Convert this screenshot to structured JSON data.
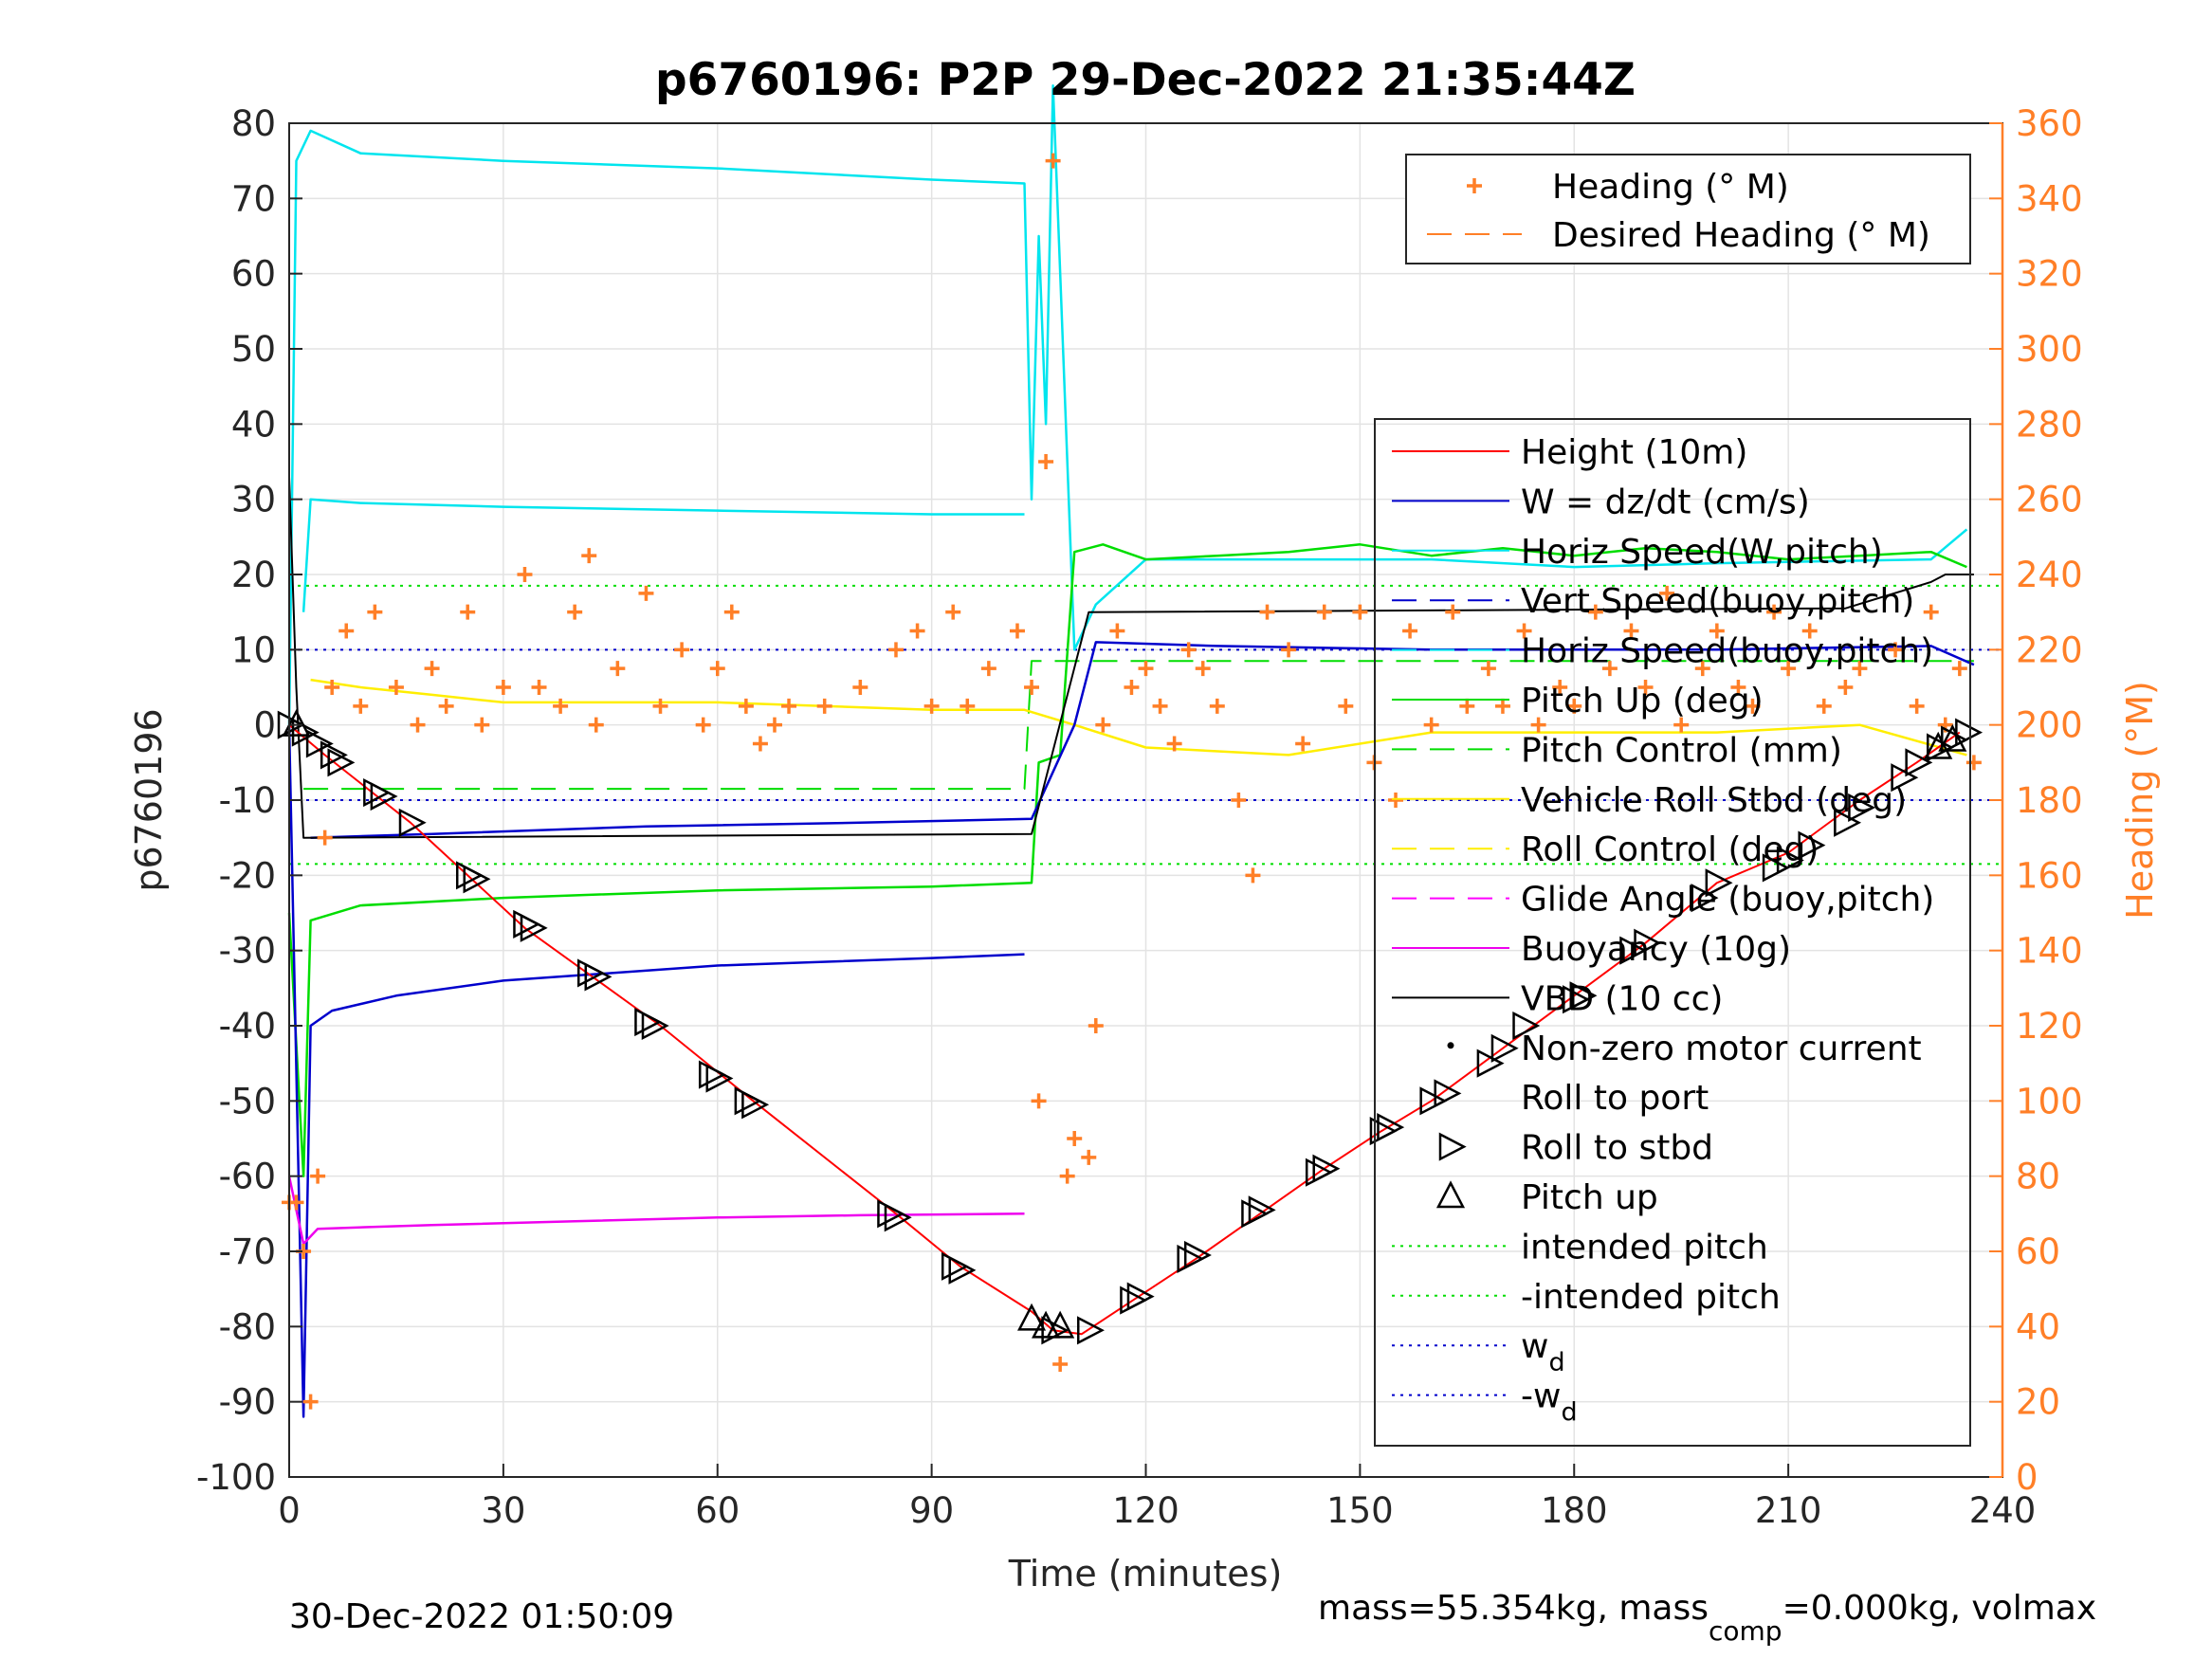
{
  "chart_data": {
    "type": "line",
    "title": "p6760196: P2P 29-Dec-2022 21:35:44Z",
    "xlabel": "Time (minutes)",
    "ylabel_left": "p6760196",
    "ylabel_right": "Heading (°M)",
    "xlim": [
      0,
      240
    ],
    "ylim_left": [
      -100,
      80
    ],
    "ylim_right": [
      0,
      360
    ],
    "x_ticks": [
      "0",
      "30",
      "60",
      "90",
      "120",
      "150",
      "180",
      "210",
      "240"
    ],
    "y_ticks_left": [
      "80",
      "70",
      "60",
      "50",
      "40",
      "30",
      "20",
      "10",
      "0",
      "-10",
      "-20",
      "-30",
      "-40",
      "-50",
      "-60",
      "-70",
      "-80",
      "-90",
      "-100"
    ],
    "y_ticks_right": [
      "360",
      "340",
      "320",
      "300",
      "280",
      "260",
      "240",
      "220",
      "200",
      "180",
      "160",
      "140",
      "120",
      "100",
      "80",
      "60",
      "40",
      "20",
      "0"
    ],
    "grid": true,
    "footer_left": "30-Dec-2022 01:50:09",
    "footer_right_pre": "mass=55.354kg, mass",
    "footer_right_sub": "comp",
    "footer_right_post": "=0.000kg, volmax",
    "colors": {
      "height": "#ff0000",
      "w": "#0000cc",
      "horiz": "#00e5ee",
      "pitch": "#00dd00",
      "roll": "#ffee00",
      "glide": "#ff00ff",
      "buoy": "#ee00ee",
      "vbd": "#000000",
      "heading": "#ff7f27",
      "right_axis": "#ff7f27"
    },
    "legend_top": [
      {
        "label": "Heading (° M)",
        "style": "plus"
      },
      {
        "label": "Desired Heading (° M)",
        "style": "dash"
      }
    ],
    "legend_main": [
      {
        "label": "Height (10m)",
        "color": "#ff0000",
        "style": "solid"
      },
      {
        "label": "W = dz/dt (cm/s)",
        "color": "#0000cc",
        "style": "solid"
      },
      {
        "label": "Horiz Speed(W,pitch)",
        "color": "#00e5ee",
        "style": "solid"
      },
      {
        "label": "Vert Speed(buoy,pitch)",
        "color": "#0000cc",
        "style": "dash"
      },
      {
        "label": "Horiz Speed(buoy,pitch)",
        "color": "#00e5ee",
        "style": "dash"
      },
      {
        "label": "Pitch Up (deg)",
        "color": "#00dd00",
        "style": "solid"
      },
      {
        "label": "Pitch Control (mm)",
        "color": "#00dd00",
        "style": "dash"
      },
      {
        "label": "Vehicle Roll Stbd (deg)",
        "color": "#ffee00",
        "style": "solid"
      },
      {
        "label": "Roll Control (deg)",
        "color": "#ffee00",
        "style": "dash"
      },
      {
        "label": "Glide Angle (buoy,pitch)",
        "color": "#ff00ff",
        "style": "dash"
      },
      {
        "label": "Buoyancy (10g)",
        "color": "#ee00ee",
        "style": "solid"
      },
      {
        "label": "VBD (10 cc)",
        "color": "#000000",
        "style": "solid"
      },
      {
        "label": "Non-zero motor current",
        "color": "#000000",
        "style": "dot"
      },
      {
        "label": "Roll to port",
        "color": "#000000",
        "style": "none"
      },
      {
        "label": "Roll to stbd",
        "color": "#000000",
        "style": "tri-right"
      },
      {
        "label": "Pitch up",
        "color": "#000000",
        "style": "tri-up"
      },
      {
        "label": "intended pitch",
        "color": "#00dd00",
        "style": "dotted"
      },
      {
        "label": "-intended pitch",
        "color": "#00dd00",
        "style": "dotted"
      },
      {
        "label": "w",
        "sub": "d",
        "color": "#0000cc",
        "style": "dotted"
      },
      {
        "label": "-w",
        "sub": "d",
        "color": "#0000cc",
        "style": "dotted"
      }
    ],
    "reference_lines": {
      "intended_pitch": 18.5,
      "w_d": 10
    },
    "series": {
      "height": [
        [
          0,
          0
        ],
        [
          5,
          -4
        ],
        [
          17,
          -13
        ],
        [
          33,
          -27
        ],
        [
          52,
          -40
        ],
        [
          65,
          -50
        ],
        [
          85,
          -65
        ],
        [
          94,
          -72
        ],
        [
          104,
          -78
        ],
        [
          107,
          -80.5
        ],
        [
          111,
          -81
        ],
        [
          119,
          -76
        ],
        [
          127,
          -71
        ],
        [
          136,
          -65
        ],
        [
          145,
          -59
        ],
        [
          153,
          -54
        ],
        [
          160,
          -50
        ],
        [
          170,
          -43
        ],
        [
          180,
          -36
        ],
        [
          190,
          -29
        ],
        [
          200,
          -21
        ],
        [
          210,
          -17
        ],
        [
          220,
          -10
        ],
        [
          228,
          -5
        ],
        [
          234,
          -1
        ]
      ],
      "roll_markers": [
        [
          0,
          0
        ],
        [
          2,
          -1
        ],
        [
          4,
          -2.5
        ],
        [
          6,
          -4
        ],
        [
          7,
          -5
        ],
        [
          12,
          -9
        ],
        [
          13,
          -9.5
        ],
        [
          17,
          -13
        ],
        [
          25,
          -20
        ],
        [
          26,
          -20.5
        ],
        [
          33,
          -26.5
        ],
        [
          34,
          -27
        ],
        [
          42,
          -33
        ],
        [
          43,
          -33.5
        ],
        [
          50,
          -39.5
        ],
        [
          51,
          -40
        ],
        [
          59,
          -46.5
        ],
        [
          60,
          -47
        ],
        [
          64,
          -50
        ],
        [
          65,
          -50.5
        ],
        [
          84,
          -65
        ],
        [
          85,
          -65.5
        ],
        [
          93,
          -72
        ],
        [
          94,
          -72.5
        ],
        [
          107,
          -80.5
        ],
        [
          112,
          -80.5
        ],
        [
          118,
          -76.5
        ],
        [
          119,
          -76
        ],
        [
          126,
          -71
        ],
        [
          127,
          -70.5
        ],
        [
          135,
          -65
        ],
        [
          136,
          -64.5
        ],
        [
          144,
          -59.5
        ],
        [
          145,
          -59
        ],
        [
          153,
          -54
        ],
        [
          154,
          -53.5
        ],
        [
          160,
          -50
        ],
        [
          162,
          -49
        ],
        [
          168,
          -45
        ],
        [
          170,
          -43
        ],
        [
          173,
          -40
        ],
        [
          180,
          -36.5
        ],
        [
          181,
          -36
        ],
        [
          188,
          -30
        ],
        [
          190,
          -29
        ],
        [
          198,
          -23
        ],
        [
          200,
          -21
        ],
        [
          208,
          -19
        ],
        [
          210,
          -18
        ],
        [
          213,
          -16
        ],
        [
          218,
          -13
        ],
        [
          220,
          -11
        ],
        [
          226,
          -7
        ],
        [
          228,
          -5
        ],
        [
          231,
          -3
        ],
        [
          233,
          -2
        ],
        [
          235,
          -1
        ]
      ],
      "pitch_up_markers": [
        [
          1,
          0
        ],
        [
          104,
          -79
        ],
        [
          106,
          -80
        ],
        [
          108,
          -80
        ],
        [
          231,
          -3
        ],
        [
          233,
          -2
        ]
      ],
      "vbd": [
        [
          0,
          33
        ],
        [
          1,
          5
        ],
        [
          2,
          -15
        ],
        [
          104,
          -14.5
        ],
        [
          112,
          15
        ],
        [
          218,
          15.5
        ],
        [
          230,
          19
        ],
        [
          232,
          20
        ],
        [
          236,
          20
        ]
      ],
      "pitch_up": [
        [
          0,
          -25
        ],
        [
          2,
          -60
        ],
        [
          3,
          -26
        ],
        [
          10,
          -24
        ],
        [
          30,
          -23
        ],
        [
          60,
          -22
        ],
        [
          90,
          -21.5
        ],
        [
          104,
          -21
        ],
        [
          105,
          -5
        ],
        [
          108,
          -4
        ],
        [
          110,
          23
        ],
        [
          114,
          24
        ],
        [
          120,
          22
        ],
        [
          130,
          22.5
        ],
        [
          140,
          23
        ],
        [
          150,
          24
        ],
        [
          160,
          22.5
        ],
        [
          170,
          23.5
        ],
        [
          180,
          22.5
        ],
        [
          190,
          23.5
        ],
        [
          200,
          23
        ],
        [
          210,
          22
        ],
        [
          220,
          22.5
        ],
        [
          230,
          23
        ],
        [
          235,
          21
        ]
      ],
      "w": [
        [
          0,
          0
        ],
        [
          2,
          -92
        ],
        [
          3,
          -40
        ],
        [
          6,
          -38
        ],
        [
          15,
          -36
        ],
        [
          30,
          -34
        ],
        [
          60,
          -32
        ],
        [
          90,
          -31
        ],
        [
          103,
          -30.5
        ]
      ],
      "w_pos": [
        [
          3,
          -15
        ],
        [
          20,
          -14.5
        ],
        [
          50,
          -13.5
        ],
        [
          80,
          -13
        ],
        [
          104,
          -12.5
        ],
        [
          110,
          0
        ],
        [
          113,
          11
        ],
        [
          130,
          10.5
        ],
        [
          160,
          10
        ],
        [
          200,
          10
        ],
        [
          230,
          10.5
        ],
        [
          236,
          8
        ]
      ],
      "horiz": [
        [
          0,
          0
        ],
        [
          1,
          75
        ],
        [
          3,
          79
        ],
        [
          10,
          76
        ],
        [
          30,
          75
        ],
        [
          60,
          74
        ],
        [
          90,
          72.5
        ],
        [
          103,
          72
        ],
        [
          104,
          30
        ],
        [
          105,
          65
        ],
        [
          106,
          40
        ],
        [
          107,
          85
        ],
        [
          108,
          60
        ],
        [
          110,
          10
        ],
        [
          113,
          16
        ],
        [
          120,
          22
        ],
        [
          140,
          22
        ],
        [
          160,
          22
        ],
        [
          180,
          21
        ],
        [
          200,
          21.5
        ],
        [
          230,
          22
        ],
        [
          235,
          26
        ]
      ],
      "horiz_low": [
        [
          2,
          15
        ],
        [
          3,
          30
        ],
        [
          10,
          29.5
        ],
        [
          30,
          29
        ],
        [
          60,
          28.5
        ],
        [
          90,
          28
        ],
        [
          103,
          28
        ]
      ],
      "buoyancy": [
        [
          0,
          -60
        ],
        [
          2,
          -69
        ],
        [
          4,
          -67
        ],
        [
          20,
          -66.5
        ],
        [
          40,
          -66
        ],
        [
          60,
          -65.5
        ],
        [
          80,
          -65.2
        ],
        [
          103,
          -65
        ]
      ],
      "heading": [
        [
          0,
          73
        ],
        [
          1,
          73
        ],
        [
          2,
          60
        ],
        [
          3,
          20
        ],
        [
          4,
          80
        ],
        [
          5,
          170
        ],
        [
          6,
          210
        ],
        [
          8,
          225
        ],
        [
          10,
          205
        ],
        [
          12,
          230
        ],
        [
          15,
          210
        ],
        [
          18,
          200
        ],
        [
          20,
          215
        ],
        [
          22,
          205
        ],
        [
          25,
          230
        ],
        [
          27,
          200
        ],
        [
          30,
          210
        ],
        [
          33,
          240
        ],
        [
          35,
          210
        ],
        [
          38,
          205
        ],
        [
          40,
          230
        ],
        [
          42,
          245
        ],
        [
          43,
          200
        ],
        [
          46,
          215
        ],
        [
          50,
          235
        ],
        [
          52,
          205
        ],
        [
          55,
          220
        ],
        [
          58,
          200
        ],
        [
          60,
          215
        ],
        [
          62,
          230
        ],
        [
          64,
          205
        ],
        [
          66,
          195
        ],
        [
          68,
          200
        ],
        [
          70,
          205
        ],
        [
          75,
          205
        ],
        [
          80,
          210
        ],
        [
          85,
          220
        ],
        [
          88,
          225
        ],
        [
          90,
          205
        ],
        [
          93,
          230
        ],
        [
          95,
          205
        ],
        [
          98,
          215
        ],
        [
          102,
          225
        ],
        [
          104,
          210
        ],
        [
          105,
          100
        ],
        [
          106,
          270
        ],
        [
          107,
          350
        ],
        [
          108,
          30
        ],
        [
          109,
          80
        ],
        [
          110,
          90
        ],
        [
          112,
          85
        ],
        [
          113,
          120
        ],
        [
          114,
          200
        ],
        [
          116,
          225
        ],
        [
          118,
          210
        ],
        [
          120,
          215
        ],
        [
          122,
          205
        ],
        [
          124,
          195
        ],
        [
          126,
          220
        ],
        [
          128,
          215
        ],
        [
          130,
          205
        ],
        [
          133,
          180
        ],
        [
          135,
          160
        ],
        [
          137,
          230
        ],
        [
          140,
          220
        ],
        [
          142,
          195
        ],
        [
          145,
          230
        ],
        [
          148,
          205
        ],
        [
          150,
          230
        ],
        [
          152,
          190
        ],
        [
          155,
          180
        ],
        [
          157,
          225
        ],
        [
          160,
          200
        ],
        [
          163,
          230
        ],
        [
          165,
          205
        ],
        [
          168,
          215
        ],
        [
          170,
          205
        ],
        [
          173,
          225
        ],
        [
          175,
          200
        ],
        [
          178,
          210
        ],
        [
          180,
          205
        ],
        [
          183,
          230
        ],
        [
          185,
          215
        ],
        [
          188,
          225
        ],
        [
          190,
          210
        ],
        [
          193,
          235
        ],
        [
          195,
          200
        ],
        [
          198,
          215
        ],
        [
          200,
          225
        ],
        [
          203,
          210
        ],
        [
          205,
          205
        ],
        [
          208,
          230
        ],
        [
          210,
          215
        ],
        [
          213,
          225
        ],
        [
          215,
          205
        ],
        [
          218,
          210
        ],
        [
          220,
          215
        ],
        [
          225,
          220
        ],
        [
          228,
          205
        ],
        [
          230,
          230
        ],
        [
          232,
          200
        ],
        [
          234,
          215
        ],
        [
          236,
          190
        ]
      ],
      "roll_upper": [
        [
          3,
          6
        ],
        [
          10,
          5
        ],
        [
          20,
          4
        ],
        [
          30,
          3
        ],
        [
          60,
          3
        ],
        [
          90,
          2
        ],
        [
          103,
          2
        ],
        [
          110,
          0
        ],
        [
          120,
          -3
        ],
        [
          140,
          -4
        ],
        [
          160,
          -1
        ],
        [
          180,
          -1
        ],
        [
          200,
          -1
        ],
        [
          220,
          0
        ],
        [
          235,
          -4
        ]
      ],
      "pitch_control_dash": [
        [
          2,
          -8.5
        ],
        [
          103,
          -8.5
        ],
        [
          104,
          8.5
        ],
        [
          236,
          8.5
        ]
      ]
    }
  }
}
